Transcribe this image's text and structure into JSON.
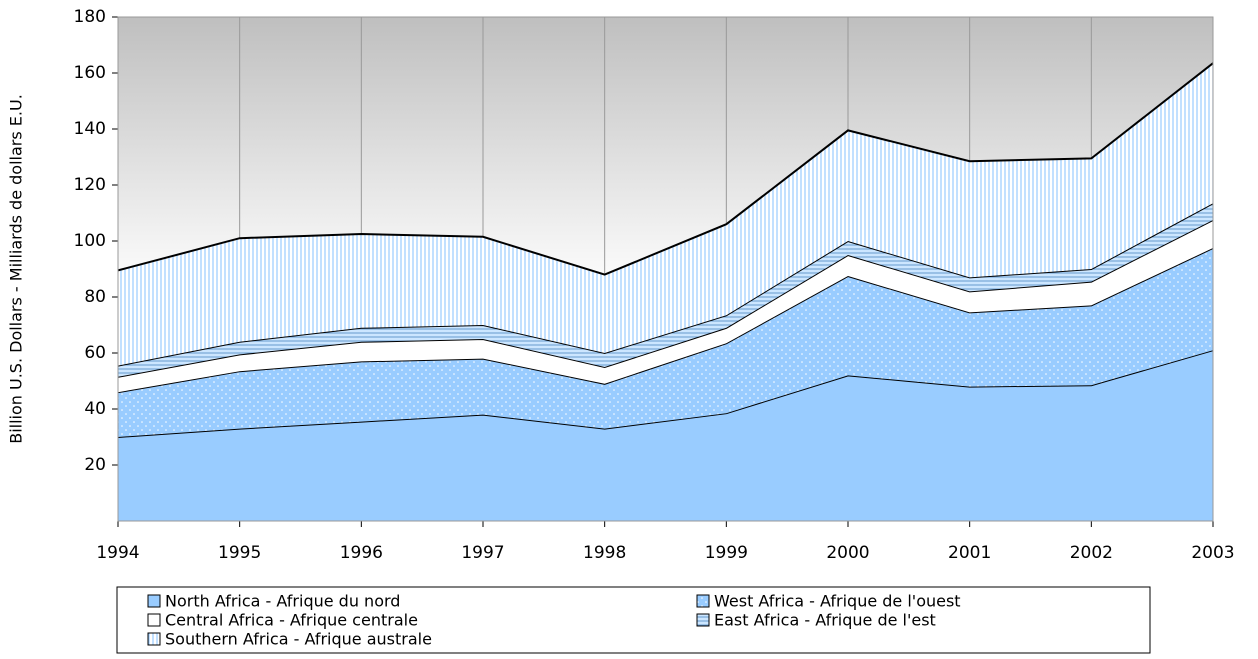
{
  "chart_data": {
    "type": "stacked_area",
    "y_label": "Billion U.S. Dollars - Milliards de dollars E.U.",
    "categories": [
      "1994",
      "1995",
      "1996",
      "1997",
      "1998",
      "1999",
      "2000",
      "2001",
      "2002",
      "2003"
    ],
    "series": [
      {
        "name": "North Africa - Afrique du nord",
        "color": "#99ccff",
        "values": [
          30,
          33,
          35.5,
          38,
          33,
          38.5,
          52,
          48,
          48.5,
          61
        ]
      },
      {
        "name": "West Africa - Afrique de l'ouest",
        "color": "#99ccff",
        "values": [
          16,
          20.5,
          21.5,
          20,
          16,
          25,
          35.5,
          26.5,
          28.5,
          36.5
        ]
      },
      {
        "name": "Central Africa - Afrique centrale",
        "color": "#ffffff",
        "values": [
          5.5,
          6,
          7,
          7,
          6,
          5.5,
          7.5,
          7.5,
          8.5,
          10
        ]
      },
      {
        "name": "East Africa - Afrique de l'est",
        "color": "#cce6ff",
        "values": [
          4,
          4.5,
          5,
          5,
          5,
          4.5,
          5,
          5,
          4.5,
          6
        ]
      },
      {
        "name": "Southern Africa - Afrique australe",
        "color": "#e6f2ff",
        "values": [
          34,
          37,
          33.5,
          31.5,
          28,
          32.5,
          39.5,
          41.5,
          39.5,
          50
        ]
      }
    ],
    "ylim": [
      0,
      180
    ],
    "yticks": [
      20,
      40,
      60,
      80,
      100,
      120,
      140,
      160,
      180
    ],
    "xgrid": true
  }
}
